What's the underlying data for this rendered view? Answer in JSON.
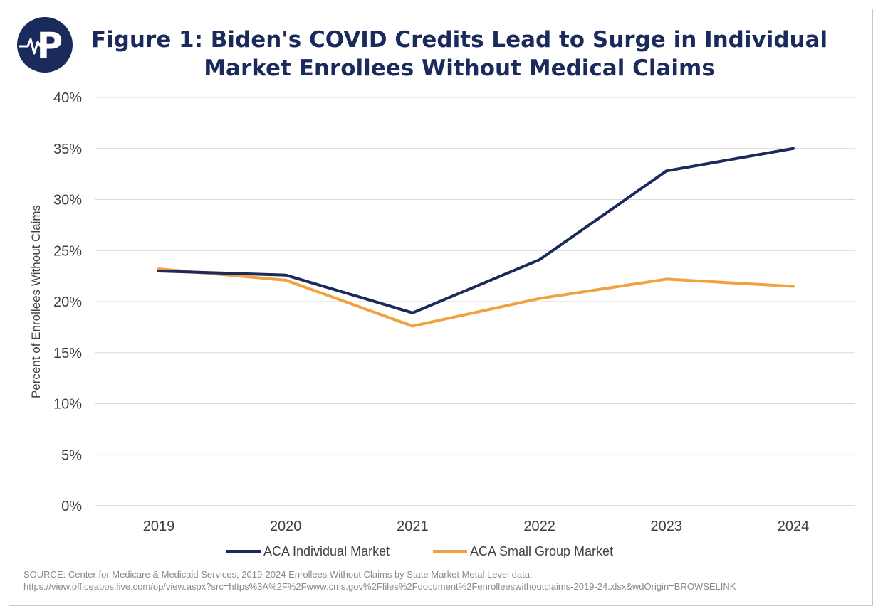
{
  "header": {
    "title_line1": "Figure 1: Biden's COVID Credits Lead to Surge in Individual",
    "title_line2": "Market Enrollees Without Medical Claims",
    "logo_letter": "P"
  },
  "colors": {
    "navy": "#1b2a5c",
    "orange": "#f0a241",
    "grid": "#d9d9d9",
    "axis_text": "#404040"
  },
  "chart_data": {
    "type": "line",
    "categories": [
      "2019",
      "2020",
      "2021",
      "2022",
      "2023",
      "2024"
    ],
    "ylabel": "Percent of Enrollees Without Claims",
    "xlabel": "",
    "ylim": [
      0,
      40
    ],
    "yticks": [
      0,
      5,
      10,
      15,
      20,
      25,
      30,
      35,
      40
    ],
    "ytick_labels": [
      "0%",
      "5%",
      "10%",
      "15%",
      "20%",
      "25%",
      "30%",
      "35%",
      "40%"
    ],
    "grid": true,
    "legend_position": "bottom",
    "series": [
      {
        "name": "ACA Individual Market",
        "color": "#1b2a5c",
        "values": [
          23.0,
          22.6,
          18.9,
          24.1,
          32.8,
          35.0
        ]
      },
      {
        "name": "ACA Small Group Market",
        "color": "#f0a241",
        "values": [
          23.2,
          22.1,
          17.6,
          20.3,
          22.2,
          21.5
        ]
      }
    ]
  },
  "source": {
    "line1": "SOURCE: Center for Medicare & Medicaid Services, 2019-2024 Enrollees Without Claims by State Market Metal Level data.",
    "line2": "https://view.officeapps.live.com/op/view.aspx?src=https%3A%2F%2Fwww.cms.gov%2Ffiles%2Fdocument%2Fenrolleeswithoutclaims-2019-24.xlsx&wdOrigin=BROWSELINK"
  }
}
